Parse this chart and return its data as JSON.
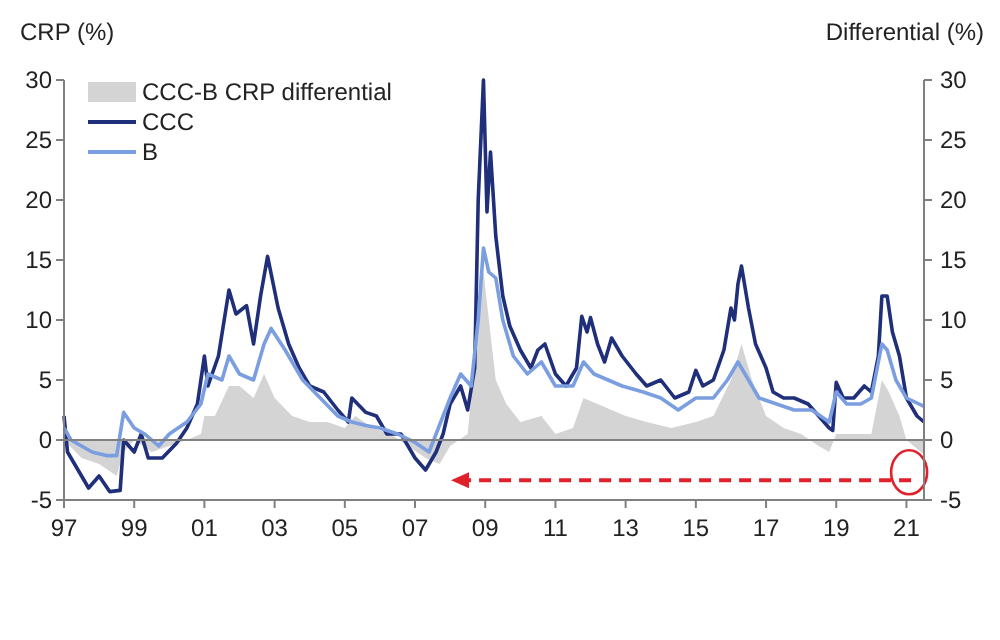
{
  "chart_data": {
    "type": "line",
    "xlabel": null,
    "ylabel": "CRP (%)",
    "y2label": "Differential (%)",
    "xlim": [
      1997,
      2021.5
    ],
    "xticks": [
      {
        "value": 1997,
        "label": "97"
      },
      {
        "value": 1999,
        "label": "99"
      },
      {
        "value": 2001,
        "label": "01"
      },
      {
        "value": 2003,
        "label": "03"
      },
      {
        "value": 2005,
        "label": "05"
      },
      {
        "value": 2007,
        "label": "07"
      },
      {
        "value": 2009,
        "label": "09"
      },
      {
        "value": 2011,
        "label": "11"
      },
      {
        "value": 2013,
        "label": "13"
      },
      {
        "value": 2015,
        "label": "15"
      },
      {
        "value": 2017,
        "label": "17"
      },
      {
        "value": 2019,
        "label": "19"
      },
      {
        "value": 2021,
        "label": "21"
      }
    ],
    "ylim": [
      -5,
      30
    ],
    "yticks": [
      -5,
      0,
      5,
      10,
      15,
      20,
      25,
      30
    ],
    "y2lim": [
      -5,
      30
    ],
    "y2ticks": [
      -5,
      0,
      5,
      10,
      15,
      20,
      25,
      30
    ],
    "grid": false,
    "legend": "top left",
    "marker": "none",
    "line_style": "solid",
    "ref_lines": [
      {
        "axis": "y",
        "value": 0,
        "color": "#808080"
      }
    ],
    "series": [
      {
        "name": "CCC-B CRP differential",
        "type": "area",
        "color": "#d4d4d4",
        "x": [
          1997,
          1997.5,
          1998,
          1998.5,
          1998.7,
          1999,
          1999.5,
          2000,
          2000.5,
          2000.9,
          2001,
          2001.3,
          2001.7,
          2002,
          2002.4,
          2002.7,
          2003,
          2003.5,
          2004,
          2004.5,
          2005,
          2005.3,
          2005.8,
          2006.3,
          2006.8,
          2007.3,
          2007.7,
          2008,
          2008.5,
          2008.8,
          2008.95,
          2009.3,
          2009.6,
          2010,
          2010.6,
          2011,
          2011.5,
          2011.8,
          2012.2,
          2012.6,
          2013,
          2013.6,
          2014.3,
          2015,
          2015.5,
          2016,
          2016.3,
          2016.6,
          2017,
          2017.5,
          2018,
          2018.5,
          2018.8,
          2019,
          2019.5,
          2020,
          2020.3,
          2020.5,
          2020.8,
          2021,
          2021.5
        ],
        "values": [
          0,
          -1.5,
          -2,
          -3,
          -1,
          0,
          -1,
          -0.5,
          0,
          0.5,
          2,
          2,
          4.5,
          4.5,
          3.5,
          5.5,
          3.5,
          2,
          1.5,
          1.5,
          1,
          2,
          1,
          0.5,
          -0.5,
          -1.5,
          -2,
          -0.5,
          0.5,
          10,
          14,
          5,
          3,
          1.5,
          2,
          0.5,
          1,
          3.5,
          3,
          2.5,
          2,
          1.5,
          1,
          1.5,
          2,
          5,
          8,
          5,
          2,
          1,
          0.5,
          -0.5,
          -1,
          0.5,
          0.5,
          0.5,
          5,
          4,
          2,
          0,
          -1.2
        ]
      },
      {
        "name": "CCC",
        "color": "#1f2f7a",
        "x": [
          1997,
          1997.1,
          1997.4,
          1997.7,
          1998,
          1998.3,
          1998.6,
          1998.7,
          1999,
          1999.2,
          1999.4,
          1999.8,
          2000.2,
          2000.5,
          2000.8,
          2001,
          2001.1,
          2001.4,
          2001.7,
          2001.9,
          2002.2,
          2002.4,
          2002.6,
          2002.8,
          2003.1,
          2003.4,
          2003.7,
          2004,
          2004.4,
          2004.8,
          2005.1,
          2005.2,
          2005.6,
          2005.9,
          2006.2,
          2006.6,
          2007,
          2007.3,
          2007.6,
          2007.8,
          2008,
          2008.3,
          2008.5,
          2008.7,
          2008.8,
          2008.95,
          2009.05,
          2009.15,
          2009.3,
          2009.5,
          2009.7,
          2010,
          2010.3,
          2010.5,
          2010.7,
          2011,
          2011.3,
          2011.6,
          2011.75,
          2011.9,
          2012,
          2012.2,
          2012.4,
          2012.6,
          2012.9,
          2013.3,
          2013.6,
          2014,
          2014.4,
          2014.8,
          2015,
          2015.2,
          2015.5,
          2015.8,
          2016,
          2016.1,
          2016.2,
          2016.3,
          2016.5,
          2016.7,
          2017,
          2017.2,
          2017.5,
          2017.8,
          2018.2,
          2018.5,
          2018.8,
          2018.9,
          2019,
          2019.2,
          2019.5,
          2019.8,
          2020,
          2020.2,
          2020.3,
          2020.45,
          2020.6,
          2020.8,
          2021,
          2021.3,
          2021.5
        ],
        "values": [
          2,
          -1,
          -2.5,
          -4,
          -3,
          -4.3,
          -4.2,
          0,
          -1,
          0.5,
          -1.5,
          -1.5,
          -0.3,
          1,
          3,
          7,
          4.5,
          7,
          12.5,
          10.5,
          11.2,
          8,
          12,
          15.3,
          11,
          8,
          6,
          4.5,
          4,
          2.5,
          1.5,
          3.5,
          2.3,
          2,
          0.5,
          0.5,
          -1.5,
          -2.5,
          -1,
          0.5,
          3,
          4.5,
          2.5,
          6,
          20,
          30,
          19,
          24,
          17,
          12,
          9.5,
          7.5,
          6,
          7.5,
          8,
          5.5,
          4.5,
          6,
          10.3,
          9,
          10.2,
          8,
          6.5,
          8.5,
          7,
          5.5,
          4.5,
          5,
          3.5,
          4,
          5.8,
          4.5,
          5,
          7.5,
          11,
          10,
          13,
          14.5,
          11,
          8,
          6,
          4,
          3.5,
          3.5,
          3,
          2,
          1,
          0.8,
          4.8,
          3.5,
          3.5,
          4.5,
          4,
          7,
          12,
          12,
          9,
          7,
          3.5,
          2,
          1.5
        ]
      },
      {
        "name": "B",
        "color": "#7b9ee0",
        "x": [
          1997,
          1997.2,
          1997.5,
          1997.8,
          1998.2,
          1998.5,
          1998.7,
          1999,
          1999.3,
          1999.7,
          2000,
          2000.5,
          2000.9,
          2001.1,
          2001.5,
          2001.7,
          2002,
          2002.4,
          2002.7,
          2002.9,
          2003.3,
          2003.8,
          2004.3,
          2004.8,
          2005.2,
          2005.6,
          2006,
          2006.5,
          2007,
          2007.4,
          2007.8,
          2008,
          2008.3,
          2008.6,
          2008.8,
          2008.95,
          2009.1,
          2009.3,
          2009.5,
          2009.8,
          2010.2,
          2010.6,
          2011,
          2011.5,
          2011.8,
          2012.1,
          2012.5,
          2012.9,
          2013.5,
          2014,
          2014.5,
          2015,
          2015.5,
          2015.9,
          2016.2,
          2016.5,
          2016.8,
          2017.3,
          2017.8,
          2018.3,
          2018.8,
          2019,
          2019.3,
          2019.7,
          2020,
          2020.3,
          2020.45,
          2020.7,
          2021,
          2021.5
        ],
        "values": [
          1,
          0,
          -0.5,
          -1,
          -1.3,
          -1.3,
          2.3,
          1,
          0.5,
          -0.5,
          0.5,
          1.5,
          3,
          5.5,
          5,
          7,
          5.5,
          5,
          8,
          9.3,
          7.5,
          5,
          3.5,
          2,
          1.5,
          1.2,
          1,
          0.5,
          -0.2,
          -1,
          2,
          3.5,
          5.5,
          4.5,
          10,
          16,
          14,
          13.5,
          10,
          7,
          5.5,
          6.5,
          4.5,
          4.5,
          6.5,
          5.5,
          5,
          4.5,
          4,
          3.5,
          2.5,
          3.5,
          3.5,
          5,
          6.5,
          5,
          3.5,
          3,
          2.5,
          2.5,
          1.5,
          4,
          3,
          3,
          3.5,
          8,
          7.5,
          5,
          3.5,
          2.8
        ]
      }
    ]
  }
}
